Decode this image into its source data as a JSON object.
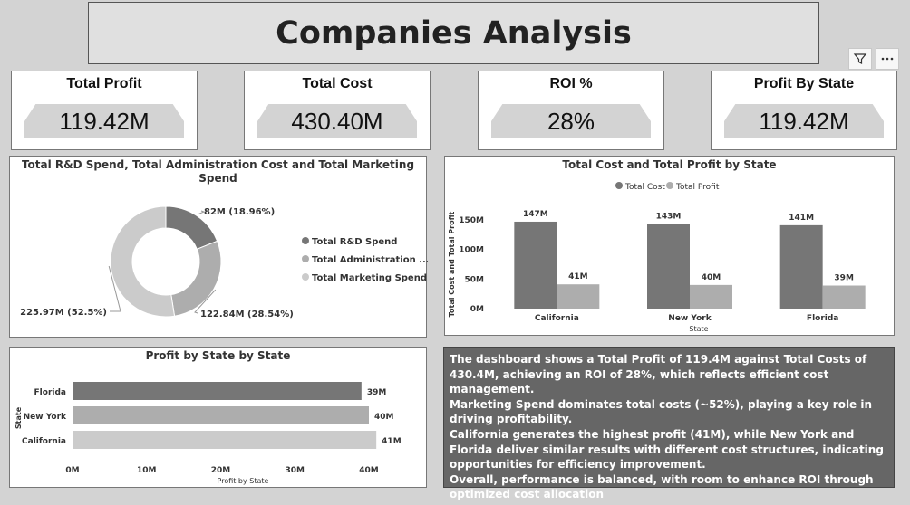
{
  "dashboard": {
    "title": "Companies Analysis"
  },
  "kpis": [
    {
      "label": "Total Profit",
      "value": "119.42M"
    },
    {
      "label": "Total Cost",
      "value": "430.40M"
    },
    {
      "label": "ROI %",
      "value": "28%"
    },
    {
      "label": "Profit By State",
      "value": "119.42M"
    }
  ],
  "toolbar": {
    "filter_icon": "filter-icon",
    "more_icon": "more-options-icon"
  },
  "colors": {
    "dark": "#767676",
    "medium": "#adadad",
    "light": "#cbcbcb",
    "kpi_plate": "#d3d3d3"
  },
  "chart_data": [
    {
      "type": "pie",
      "title": "Total R&D Spend, Total Administration Cost and Total Marketing Spend",
      "title_lines": [
        "Total R&D Spend, Total Administration Cost and Total Marketing",
        "Spend"
      ],
      "slices": [
        {
          "name": "Total R&D Spend",
          "legend": "Total R&D Spend",
          "value": 81.6,
          "label": "82M (18.96%)",
          "color": "#767676"
        },
        {
          "name": "Total Administration Cost",
          "legend": "Total Administration ...",
          "value": 122.84,
          "label": "122.84M (28.54%)",
          "color": "#adadad"
        },
        {
          "name": "Total Marketing Spend",
          "legend": "Total Marketing Spend",
          "value": 225.97,
          "label": "225.97M (52.5%)",
          "color": "#cbcbcb"
        }
      ]
    },
    {
      "type": "bar",
      "title": "Total Cost and Total Profit by State",
      "categories": [
        "California",
        "New York",
        "Florida"
      ],
      "series": [
        {
          "name": "Total Cost",
          "values": [
            147,
            143,
            141
          ],
          "labels": [
            "147M",
            "143M",
            "141M"
          ],
          "color": "#767676"
        },
        {
          "name": "Total Profit",
          "values": [
            41,
            40,
            39
          ],
          "labels": [
            "41M",
            "40M",
            "39M"
          ],
          "color": "#adadad"
        }
      ],
      "ylim": [
        0,
        150
      ],
      "yticks": [
        {
          "v": 0,
          "t": "0M"
        },
        {
          "v": 50,
          "t": "50M"
        },
        {
          "v": 100,
          "t": "100M"
        },
        {
          "v": 150,
          "t": "150M"
        }
      ],
      "xlabel": "State",
      "ylabel": "Total Cost and Total Profit"
    },
    {
      "type": "bar",
      "orientation": "horizontal",
      "title": "Profit by State by State",
      "categories": [
        "Florida",
        "New York",
        "California"
      ],
      "values": [
        39,
        40,
        41
      ],
      "labels": [
        "39M",
        "40M",
        "41M"
      ],
      "colors": [
        "#767676",
        "#adadad",
        "#cbcbcb"
      ],
      "xlim": [
        0,
        40
      ],
      "xticks": [
        {
          "v": 0,
          "t": "0M"
        },
        {
          "v": 10,
          "t": "10M"
        },
        {
          "v": 20,
          "t": "20M"
        },
        {
          "v": 30,
          "t": "30M"
        },
        {
          "v": 40,
          "t": "40M"
        }
      ],
      "xlabel": "Profit by State",
      "ylabel": "State"
    }
  ],
  "summary": {
    "paragraphs": [
      "The dashboard shows a Total Profit of 119.4M against Total Costs of 430.4M, achieving an ROI of 28%, which reflects efficient cost management.",
      "Marketing Spend dominates total costs (~52%), playing a key role in driving profitability.",
      "California generates the highest profit (41M), while New York and Florida deliver similar results with different cost structures, indicating opportunities for efficiency improvement.",
      "Overall, performance is balanced, with room to enhance ROI through optimized cost allocation"
    ]
  }
}
